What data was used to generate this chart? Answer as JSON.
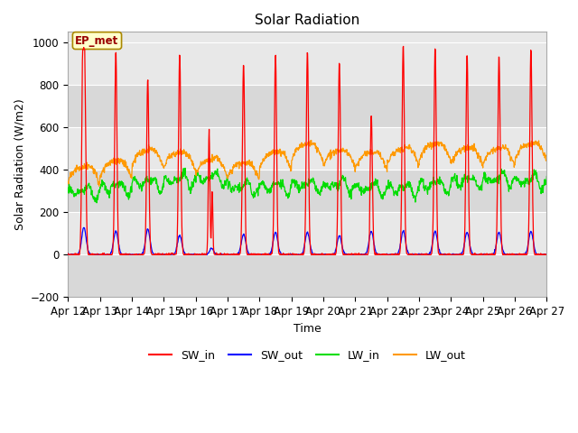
{
  "title": "Solar Radiation",
  "ylabel": "Solar Radiation (W/m2)",
  "xlabel": "Time",
  "ylim": [
    -200,
    1050
  ],
  "yticks": [
    -200,
    0,
    200,
    400,
    600,
    800,
    1000
  ],
  "x_labels": [
    "Apr 12",
    "Apr 13",
    "Apr 14",
    "Apr 15",
    "Apr 16",
    "Apr 17",
    "Apr 18",
    "Apr 19",
    "Apr 20",
    "Apr 21",
    "Apr 22",
    "Apr 23",
    "Apr 24",
    "Apr 25",
    "Apr 26",
    "Apr 27"
  ],
  "colors": {
    "SW_in": "#ff0000",
    "SW_out": "#0000ff",
    "LW_in": "#00dd00",
    "LW_out": "#ff9900"
  },
  "background_color": "#e8e8e8",
  "band_colors": [
    "#d8d8d8",
    "#e8e8e8"
  ],
  "annotation_text": "EP_met",
  "annotation_bg": "#ffffcc",
  "annotation_border": "#aa8800",
  "steps_per_day": 96,
  "num_days": 15,
  "title_fontsize": 11,
  "label_fontsize": 9,
  "tick_fontsize": 8.5
}
